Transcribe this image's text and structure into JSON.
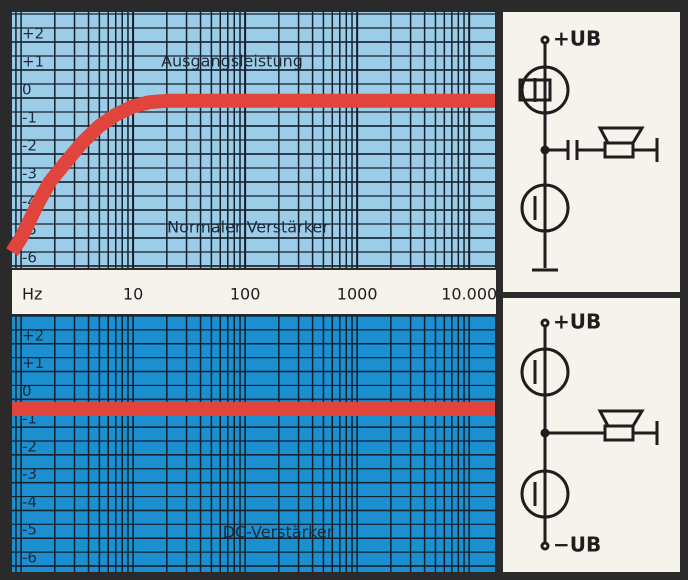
{
  "chart_data": [
    {
      "type": "line",
      "xscale": "log",
      "xlim": [
        0.83,
        17000
      ],
      "ylim": [
        -6,
        3
      ],
      "xlabel": "Hz",
      "xticks": [
        10,
        100,
        1000,
        {
          "value": 10000,
          "label": "10.000"
        }
      ],
      "yticks": [
        {
          "value": 2,
          "label": "+2"
        },
        {
          "value": 1,
          "label": "+1"
        },
        0,
        -1,
        -2,
        -3,
        -4,
        -5,
        -6
      ],
      "grid": true,
      "minor_grid": true,
      "background": "#9ccde8",
      "annotations": [
        "Ausgangsleistung",
        "Normaler Verstärker"
      ],
      "series": [
        {
          "color": "#e0443c",
          "x": [
            0.83,
            1,
            1.4,
            1.8,
            2.5,
            3.5,
            5,
            7,
            10,
            14,
            20,
            50,
            100,
            1000,
            10000,
            17000
          ],
          "values": [
            -5.5,
            -5,
            -3.8,
            -3,
            -2.3,
            -1.6,
            -1,
            -0.6,
            -0.3,
            -0.15,
            -0.1,
            -0.1,
            -0.1,
            -0.1,
            -0.1,
            -0.1
          ]
        }
      ]
    },
    {
      "type": "line",
      "xscale": "log",
      "xlim": [
        0.83,
        17000
      ],
      "ylim": [
        -6,
        3
      ],
      "yticks": [
        {
          "value": 2,
          "label": "+2"
        },
        {
          "value": 1,
          "label": "+1"
        },
        0,
        -1,
        -2,
        -3,
        -4,
        -5,
        -6
      ],
      "grid": true,
      "minor_grid": true,
      "background": "#1b8fd0",
      "annotations": [
        "DC-Verstärker"
      ],
      "series": [
        {
          "color": "#e0443c",
          "x": [
            0.83,
            17000
          ],
          "values": [
            -0.35,
            -0.35
          ]
        }
      ]
    }
  ],
  "circuits": [
    {
      "top_label": "+UB"
    },
    {
      "top_label": "+UB",
      "bottom_label": "−UB"
    }
  ]
}
